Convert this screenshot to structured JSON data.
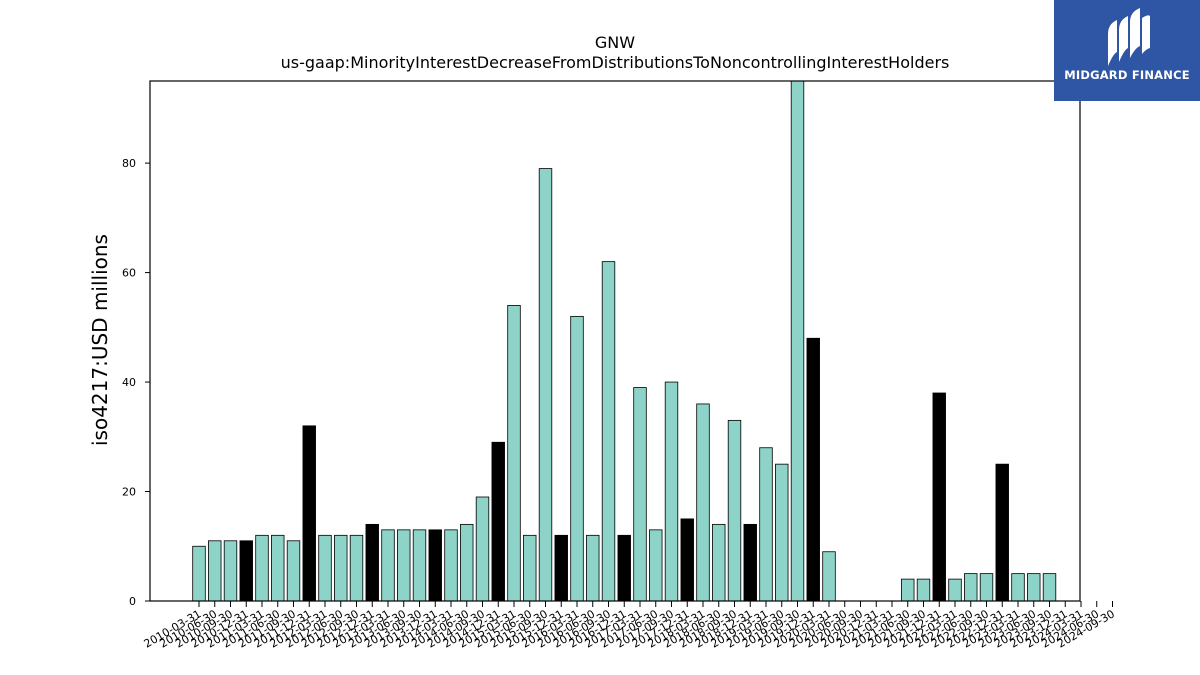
{
  "chart_data": {
    "type": "bar",
    "title": "GNW",
    "subtitle": "us-gaap:MinorityInterestDecreaseFromDistributionsToNoncontrollingInterestHolders",
    "ylabel": "iso4217:USD  millions",
    "xlabel": "",
    "ylim": [
      0,
      95
    ],
    "yticks": [
      0,
      20,
      40,
      60,
      80
    ],
    "grid": false,
    "colors": {
      "quarter": "#8dd3c7",
      "annual": "#000000",
      "edge": "#000000"
    },
    "categories": [
      "2010-03-31",
      "2010-06-30",
      "2010-09-30",
      "2010-12-31",
      "2011-03-31",
      "2011-06-30",
      "2011-09-30",
      "2011-12-31",
      "2012-03-31",
      "2012-06-30",
      "2012-09-30",
      "2012-12-31",
      "2013-03-31",
      "2013-06-30",
      "2013-09-30",
      "2013-12-31",
      "2014-03-31",
      "2014-06-30",
      "2014-09-30",
      "2014-12-31",
      "2015-03-31",
      "2015-06-30",
      "2015-09-30",
      "2015-12-31",
      "2016-03-31",
      "2016-06-30",
      "2016-09-30",
      "2016-12-31",
      "2017-03-31",
      "2017-06-30",
      "2017-09-30",
      "2017-12-31",
      "2018-03-31",
      "2018-06-30",
      "2018-09-30",
      "2018-12-31",
      "2019-03-31",
      "2019-06-30",
      "2019-09-30",
      "2019-12-31",
      "2020-03-31",
      "2020-06-30",
      "2020-09-30",
      "2020-12-31",
      "2021-03-31",
      "2021-06-30",
      "2021-09-30",
      "2021-12-31",
      "2022-03-31",
      "2022-06-30",
      "2022-09-30",
      "2022-12-31",
      "2023-03-31",
      "2023-06-30",
      "2023-09-30",
      "2023-12-31",
      "2024-03-31",
      "2024-06-30",
      "2024-09-30"
    ],
    "values": [
      10,
      11,
      11,
      11,
      12,
      12,
      11,
      32,
      12,
      12,
      12,
      14,
      13,
      13,
      13,
      13,
      13,
      14,
      19,
      29,
      54,
      12,
      79,
      12,
      52,
      12,
      62,
      12,
      39,
      13,
      40,
      15,
      36,
      14,
      33,
      14,
      28,
      25,
      95,
      48,
      9,
      0,
      0,
      0,
      0,
      4,
      4,
      38,
      4,
      5,
      5,
      25,
      5,
      5,
      5,
      null,
      null,
      null,
      null
    ],
    "annual": [
      false,
      false,
      false,
      true,
      false,
      false,
      false,
      true,
      false,
      false,
      false,
      true,
      false,
      false,
      false,
      true,
      false,
      false,
      false,
      true,
      false,
      false,
      false,
      true,
      false,
      false,
      false,
      true,
      false,
      false,
      false,
      true,
      false,
      false,
      false,
      true,
      false,
      false,
      false,
      true,
      false,
      false,
      false,
      true,
      false,
      false,
      false,
      true,
      false,
      false,
      false,
      true,
      false,
      false,
      false,
      true,
      false,
      false,
      false
    ]
  },
  "logo": {
    "text": "MIDGARD FINANCE"
  }
}
